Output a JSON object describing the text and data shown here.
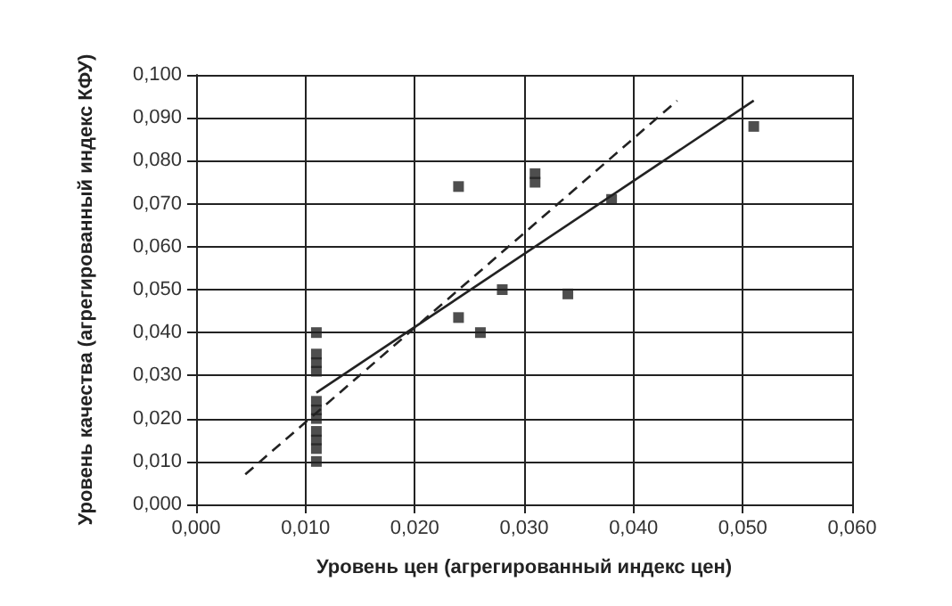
{
  "chart_data": {
    "type": "scatter",
    "xlabel": "Уровень цен (агрегированный индекс цен)",
    "ylabel": "Уровень качества (агрегированный индекс КФУ)",
    "xlim": [
      0,
      0.06
    ],
    "ylim": [
      0,
      0.1
    ],
    "xticks": [
      {
        "value": 0,
        "label": "0,000"
      },
      {
        "value": 0.01,
        "label": "0,010"
      },
      {
        "value": 0.02,
        "label": "0,020"
      },
      {
        "value": 0.03,
        "label": "0,030"
      },
      {
        "value": 0.04,
        "label": "0,040"
      },
      {
        "value": 0.05,
        "label": "0,050"
      },
      {
        "value": 0.06,
        "label": "0,060"
      }
    ],
    "yticks": [
      {
        "value": 0,
        "label": "0,000"
      },
      {
        "value": 0.01,
        "label": "0,010"
      },
      {
        "value": 0.02,
        "label": "0,020"
      },
      {
        "value": 0.03,
        "label": "0,030"
      },
      {
        "value": 0.04,
        "label": "0,040"
      },
      {
        "value": 0.05,
        "label": "0,050"
      },
      {
        "value": 0.06,
        "label": "0,060"
      },
      {
        "value": 0.07,
        "label": "0,070"
      },
      {
        "value": 0.08,
        "label": "0,080"
      },
      {
        "value": 0.09,
        "label": "0,090"
      },
      {
        "value": 0.1,
        "label": "0,100"
      }
    ],
    "grid": true,
    "series": [
      {
        "marker": "square",
        "color": "#222222",
        "x": [
          0.011,
          0.011,
          0.011,
          0.011,
          0.011,
          0.011,
          0.011,
          0.011,
          0.011,
          0.011,
          0.011,
          0.024,
          0.024,
          0.026,
          0.028,
          0.031,
          0.031,
          0.034,
          0.038,
          0.051
        ],
        "values": [
          0.01,
          0.013,
          0.015,
          0.017,
          0.02,
          0.022,
          0.024,
          0.031,
          0.033,
          0.035,
          0.04,
          0.074,
          0.0435,
          0.04,
          0.05,
          0.075,
          0.077,
          0.049,
          0.071,
          0.088
        ]
      },
      {
        "type": "line",
        "marker": "none",
        "line_style": "solid",
        "color": "#222222",
        "x": [
          0.011,
          0.051
        ],
        "values": [
          0.026,
          0.094
        ]
      },
      {
        "type": "line",
        "marker": "none",
        "line_style": "dashed",
        "color": "#222222",
        "x": [
          0.0045,
          0.044
        ],
        "values": [
          0.007,
          0.094
        ]
      }
    ]
  }
}
